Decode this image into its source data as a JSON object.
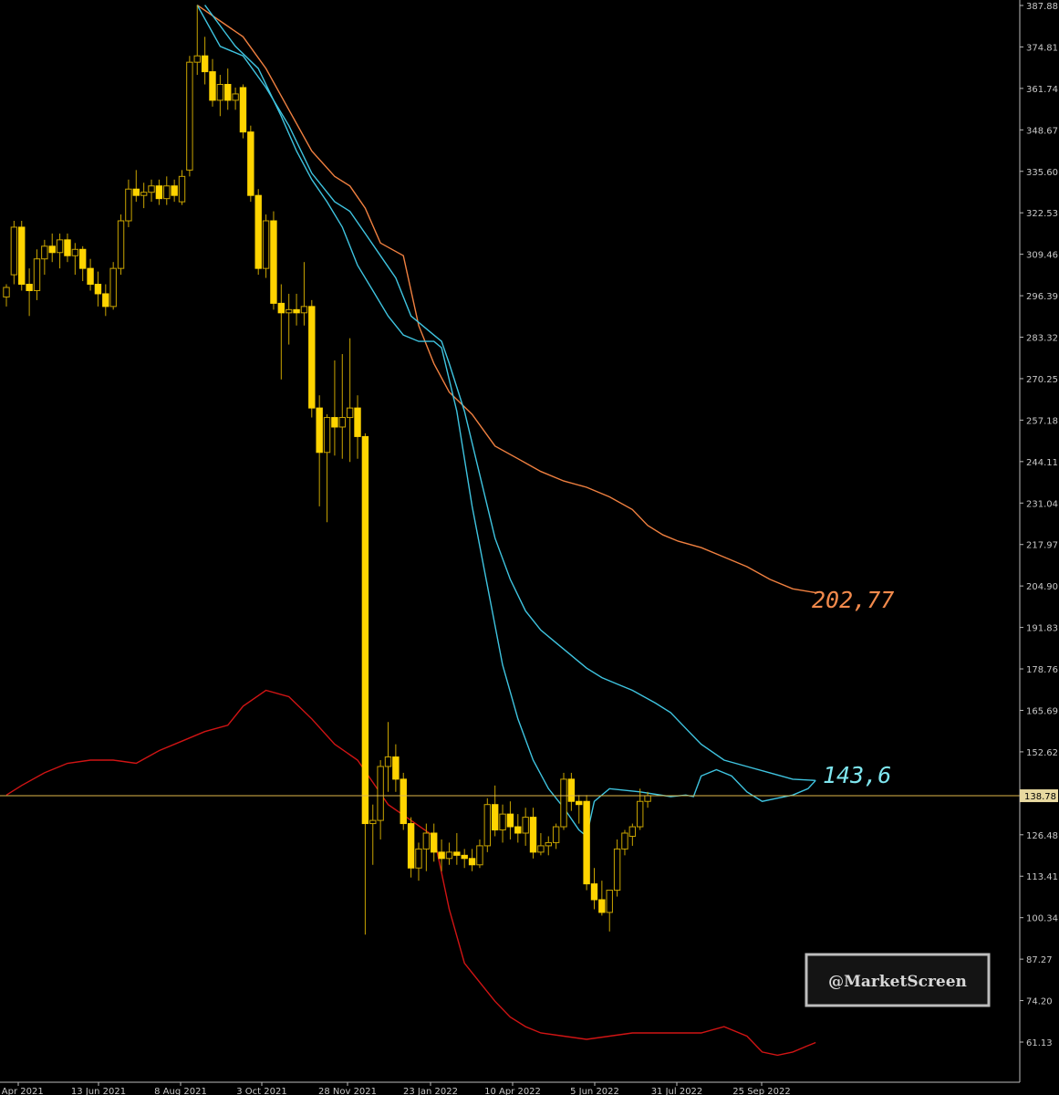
{
  "chart_data": {
    "type": "candlestick",
    "title": "",
    "x_ticks": [
      "4 Apr 2021",
      "13 Jun 2021",
      "8 Aug 2021",
      "3 Oct 2021",
      "28 Nov 2021",
      "23 Jan 2022",
      "10 Apr 2022",
      "5 Jun 2022",
      "31 Jul 2022",
      "25 Sep 2022"
    ],
    "y_ticks": [
      "387.88",
      "374.81",
      "361.74",
      "348.67",
      "335.60",
      "322.53",
      "309.46",
      "296.39",
      "283.32",
      "270.25",
      "257.18",
      "244.11",
      "231.04",
      "217.97",
      "204.90",
      "191.83",
      "178.76",
      "165.69",
      "152.62",
      "139.55",
      "126.48",
      "113.41",
      "100.34",
      "87.27",
      "74.20",
      "61.13"
    ],
    "ylim": [
      55,
      389
    ],
    "current_price_label": "138.78",
    "current_price": 138.78,
    "annotations": [
      {
        "text": "202,77",
        "color": "#f28a4c",
        "series": "orange"
      },
      {
        "text": "143,6",
        "color": "#7fe6ef",
        "series": "cyan"
      }
    ],
    "watermark": "@MarketScreen",
    "colors": {
      "candle": "#ffd400",
      "wick": "#c9a400",
      "orange": "#f08040",
      "cyan": "#3fc4e0",
      "red": "#d01414",
      "price_line": "#e0b84a",
      "axis": "#bbbbbb"
    },
    "candles": [
      {
        "o": 296,
        "h": 300,
        "l": 293,
        "c": 299
      },
      {
        "o": 303,
        "h": 320,
        "l": 300,
        "c": 318
      },
      {
        "o": 318,
        "h": 320,
        "l": 298,
        "c": 300
      },
      {
        "o": 300,
        "h": 305,
        "l": 290,
        "c": 298
      },
      {
        "o": 298,
        "h": 311,
        "l": 295,
        "c": 308
      },
      {
        "o": 308,
        "h": 314,
        "l": 303,
        "c": 312
      },
      {
        "o": 312,
        "h": 316,
        "l": 307,
        "c": 310
      },
      {
        "o": 310,
        "h": 316,
        "l": 305,
        "c": 314
      },
      {
        "o": 314,
        "h": 316,
        "l": 307,
        "c": 309
      },
      {
        "o": 309,
        "h": 313,
        "l": 303,
        "c": 311
      },
      {
        "o": 311,
        "h": 312,
        "l": 301,
        "c": 305
      },
      {
        "o": 305,
        "h": 308,
        "l": 298,
        "c": 300
      },
      {
        "o": 300,
        "h": 304,
        "l": 293,
        "c": 297
      },
      {
        "o": 297,
        "h": 300,
        "l": 290,
        "c": 293
      },
      {
        "o": 293,
        "h": 307,
        "l": 292,
        "c": 305
      },
      {
        "o": 305,
        "h": 322,
        "l": 303,
        "c": 320
      },
      {
        "o": 320,
        "h": 333,
        "l": 318,
        "c": 330
      },
      {
        "o": 330,
        "h": 336,
        "l": 326,
        "c": 328
      },
      {
        "o": 328,
        "h": 332,
        "l": 324,
        "c": 329
      },
      {
        "o": 329,
        "h": 333,
        "l": 326,
        "c": 331
      },
      {
        "o": 331,
        "h": 333,
        "l": 325,
        "c": 327
      },
      {
        "o": 327,
        "h": 334,
        "l": 325,
        "c": 331
      },
      {
        "o": 331,
        "h": 333,
        "l": 326,
        "c": 328
      },
      {
        "o": 326,
        "h": 336,
        "l": 325,
        "c": 334
      },
      {
        "o": 336,
        "h": 372,
        "l": 334,
        "c": 370
      },
      {
        "o": 370,
        "h": 388,
        "l": 366,
        "c": 372
      },
      {
        "o": 372,
        "h": 378,
        "l": 363,
        "c": 367
      },
      {
        "o": 367,
        "h": 371,
        "l": 356,
        "c": 358
      },
      {
        "o": 358,
        "h": 366,
        "l": 353,
        "c": 363
      },
      {
        "o": 363,
        "h": 368,
        "l": 355,
        "c": 358
      },
      {
        "o": 358,
        "h": 362,
        "l": 355,
        "c": 360
      },
      {
        "o": 362,
        "h": 363,
        "l": 346,
        "c": 348
      },
      {
        "o": 348,
        "h": 350,
        "l": 326,
        "c": 328
      },
      {
        "o": 328,
        "h": 330,
        "l": 303,
        "c": 305
      },
      {
        "o": 305,
        "h": 322,
        "l": 302,
        "c": 320
      },
      {
        "o": 320,
        "h": 323,
        "l": 292,
        "c": 294
      },
      {
        "o": 294,
        "h": 300,
        "l": 270,
        "c": 291
      },
      {
        "o": 291,
        "h": 297,
        "l": 281,
        "c": 292
      },
      {
        "o": 292,
        "h": 297,
        "l": 287,
        "c": 291
      },
      {
        "o": 291,
        "h": 307,
        "l": 287,
        "c": 293
      },
      {
        "o": 293,
        "h": 295,
        "l": 258,
        "c": 261
      },
      {
        "o": 261,
        "h": 265,
        "l": 230,
        "c": 247
      },
      {
        "o": 247,
        "h": 259,
        "l": 225,
        "c": 258
      },
      {
        "o": 258,
        "h": 276,
        "l": 246,
        "c": 255
      },
      {
        "o": 255,
        "h": 278,
        "l": 245,
        "c": 258
      },
      {
        "o": 258,
        "h": 283,
        "l": 244,
        "c": 261
      },
      {
        "o": 261,
        "h": 265,
        "l": 245,
        "c": 252
      },
      {
        "o": 252,
        "h": 253,
        "l": 95,
        "c": 130
      },
      {
        "o": 130,
        "h": 136,
        "l": 117,
        "c": 131
      },
      {
        "o": 131,
        "h": 150,
        "l": 125,
        "c": 148
      },
      {
        "o": 148,
        "h": 162,
        "l": 140,
        "c": 151
      },
      {
        "o": 151,
        "h": 155,
        "l": 140,
        "c": 144
      },
      {
        "o": 144,
        "h": 146,
        "l": 128,
        "c": 130
      },
      {
        "o": 130,
        "h": 132,
        "l": 113,
        "c": 116
      },
      {
        "o": 116,
        "h": 124,
        "l": 112,
        "c": 122
      },
      {
        "o": 122,
        "h": 130,
        "l": 115,
        "c": 127
      },
      {
        "o": 127,
        "h": 130,
        "l": 118,
        "c": 121
      },
      {
        "o": 121,
        "h": 125,
        "l": 115,
        "c": 119
      },
      {
        "o": 119,
        "h": 124,
        "l": 117,
        "c": 121
      },
      {
        "o": 121,
        "h": 127,
        "l": 117,
        "c": 120
      },
      {
        "o": 120,
        "h": 122,
        "l": 116,
        "c": 119
      },
      {
        "o": 119,
        "h": 122,
        "l": 115,
        "c": 117
      },
      {
        "o": 117,
        "h": 125,
        "l": 116,
        "c": 123
      },
      {
        "o": 123,
        "h": 138,
        "l": 121,
        "c": 136
      },
      {
        "o": 136,
        "h": 142,
        "l": 126,
        "c": 128
      },
      {
        "o": 128,
        "h": 136,
        "l": 124,
        "c": 133
      },
      {
        "o": 133,
        "h": 137,
        "l": 125,
        "c": 129
      },
      {
        "o": 129,
        "h": 133,
        "l": 124,
        "c": 127
      },
      {
        "o": 127,
        "h": 135,
        "l": 123,
        "c": 132
      },
      {
        "o": 132,
        "h": 135,
        "l": 119,
        "c": 121
      },
      {
        "o": 121,
        "h": 127,
        "l": 120,
        "c": 123
      },
      {
        "o": 123,
        "h": 126,
        "l": 120,
        "c": 124
      },
      {
        "o": 124,
        "h": 130,
        "l": 122,
        "c": 129
      },
      {
        "o": 129,
        "h": 146,
        "l": 128,
        "c": 144
      },
      {
        "o": 144,
        "h": 146,
        "l": 134,
        "c": 137
      },
      {
        "o": 137,
        "h": 139,
        "l": 130,
        "c": 136
      },
      {
        "o": 137,
        "h": 139,
        "l": 109,
        "c": 111
      },
      {
        "o": 111,
        "h": 116,
        "l": 103,
        "c": 106
      },
      {
        "o": 106,
        "h": 112,
        "l": 101,
        "c": 102
      },
      {
        "o": 102,
        "h": 109,
        "l": 96,
        "c": 109
      },
      {
        "o": 109,
        "h": 125,
        "l": 107,
        "c": 122
      },
      {
        "o": 122,
        "h": 128,
        "l": 120,
        "c": 127
      },
      {
        "o": 126,
        "h": 130,
        "l": 123,
        "c": 129
      },
      {
        "o": 129,
        "h": 141,
        "l": 128,
        "c": 137
      },
      {
        "o": 137,
        "h": 140,
        "l": 135,
        "c": 138.8
      }
    ],
    "series": [
      {
        "key": "orange",
        "color": "#f08040",
        "points": [
          [
            25,
            388
          ],
          [
            28,
            383
          ],
          [
            31,
            378
          ],
          [
            34,
            368
          ],
          [
            37,
            355
          ],
          [
            40,
            342
          ],
          [
            43,
            334
          ],
          [
            45,
            331
          ],
          [
            47,
            324
          ],
          [
            49,
            313
          ],
          [
            52,
            309
          ],
          [
            54,
            287
          ],
          [
            56,
            275
          ],
          [
            58,
            266
          ],
          [
            61,
            259
          ],
          [
            64,
            249
          ],
          [
            67,
            245
          ],
          [
            70,
            241
          ],
          [
            73,
            238
          ],
          [
            76,
            236
          ],
          [
            79,
            233
          ],
          [
            82,
            229
          ],
          [
            84,
            224
          ],
          [
            86,
            221
          ],
          [
            88,
            219
          ],
          [
            91,
            217
          ],
          [
            94,
            214
          ],
          [
            97,
            211
          ],
          [
            100,
            207
          ],
          [
            103,
            204
          ],
          [
            106,
            202.8
          ]
        ]
      },
      {
        "key": "cyan",
        "color": "#3fc4e0",
        "points": [
          [
            25,
            388
          ],
          [
            28,
            375
          ],
          [
            31,
            372
          ],
          [
            34,
            362
          ],
          [
            37,
            350
          ],
          [
            40,
            335
          ],
          [
            43,
            326
          ],
          [
            45,
            323
          ],
          [
            47,
            316
          ],
          [
            49,
            309
          ],
          [
            51,
            302
          ],
          [
            53,
            290
          ],
          [
            56,
            284
          ],
          [
            57,
            282
          ],
          [
            58,
            275
          ],
          [
            60,
            260
          ],
          [
            62,
            240
          ],
          [
            64,
            220
          ],
          [
            66,
            207
          ],
          [
            68,
            197
          ],
          [
            70,
            191
          ],
          [
            72,
            187
          ],
          [
            74,
            183
          ],
          [
            76,
            179
          ],
          [
            78,
            176
          ],
          [
            80,
            174
          ],
          [
            82,
            172
          ],
          [
            85,
            168
          ],
          [
            87,
            165
          ],
          [
            89,
            160
          ],
          [
            91,
            155
          ],
          [
            94,
            150
          ],
          [
            97,
            148
          ],
          [
            100,
            146
          ],
          [
            103,
            144
          ],
          [
            106,
            143.6
          ]
        ]
      },
      {
        "key": "cyan-fast",
        "color": "#3fc4e0",
        "points": [
          [
            26,
            388
          ],
          [
            30,
            375
          ],
          [
            33,
            368
          ],
          [
            36,
            353
          ],
          [
            38,
            342
          ],
          [
            40,
            333
          ],
          [
            42,
            326
          ],
          [
            44,
            318
          ],
          [
            46,
            306
          ],
          [
            48,
            298
          ],
          [
            50,
            290
          ],
          [
            52,
            284
          ],
          [
            54,
            282
          ],
          [
            56,
            282
          ],
          [
            57,
            280
          ],
          [
            59,
            260
          ],
          [
            61,
            230
          ],
          [
            63,
            205
          ],
          [
            65,
            180
          ],
          [
            67,
            163
          ],
          [
            69,
            150
          ],
          [
            71,
            141
          ],
          [
            73,
            135
          ],
          [
            75,
            128
          ],
          [
            76,
            126
          ],
          [
            77,
            137
          ],
          [
            79,
            141
          ],
          [
            83,
            140
          ],
          [
            87,
            138.5
          ],
          [
            89,
            139
          ],
          [
            90,
            138.5
          ],
          [
            91,
            145
          ],
          [
            93,
            147
          ],
          [
            95,
            145
          ],
          [
            97,
            140
          ],
          [
            99,
            137
          ],
          [
            101,
            138
          ],
          [
            103,
            139
          ],
          [
            105,
            141
          ],
          [
            106,
            143.6
          ]
        ]
      },
      {
        "key": "red",
        "color": "#d01414",
        "points": [
          [
            0,
            139
          ],
          [
            2,
            142
          ],
          [
            5,
            146
          ],
          [
            8,
            149
          ],
          [
            11,
            150
          ],
          [
            14,
            150
          ],
          [
            17,
            149
          ],
          [
            20,
            153
          ],
          [
            23,
            156
          ],
          [
            26,
            159
          ],
          [
            29,
            161
          ],
          [
            31,
            167
          ],
          [
            34,
            172
          ],
          [
            37,
            170
          ],
          [
            40,
            163
          ],
          [
            43,
            155
          ],
          [
            46,
            150
          ],
          [
            48,
            143
          ],
          [
            50,
            136
          ],
          [
            53,
            131
          ],
          [
            56,
            126
          ],
          [
            58,
            103
          ],
          [
            60,
            86
          ],
          [
            62,
            80
          ],
          [
            64,
            74
          ],
          [
            66,
            69
          ],
          [
            68,
            66
          ],
          [
            70,
            64
          ],
          [
            73,
            63
          ],
          [
            76,
            62
          ],
          [
            79,
            63
          ],
          [
            82,
            64
          ],
          [
            85,
            64
          ],
          [
            88,
            64
          ],
          [
            91,
            64
          ],
          [
            94,
            66
          ],
          [
            97,
            63
          ],
          [
            99,
            58
          ],
          [
            101,
            57
          ],
          [
            103,
            58
          ],
          [
            105,
            60
          ],
          [
            106,
            61
          ]
        ]
      }
    ]
  }
}
